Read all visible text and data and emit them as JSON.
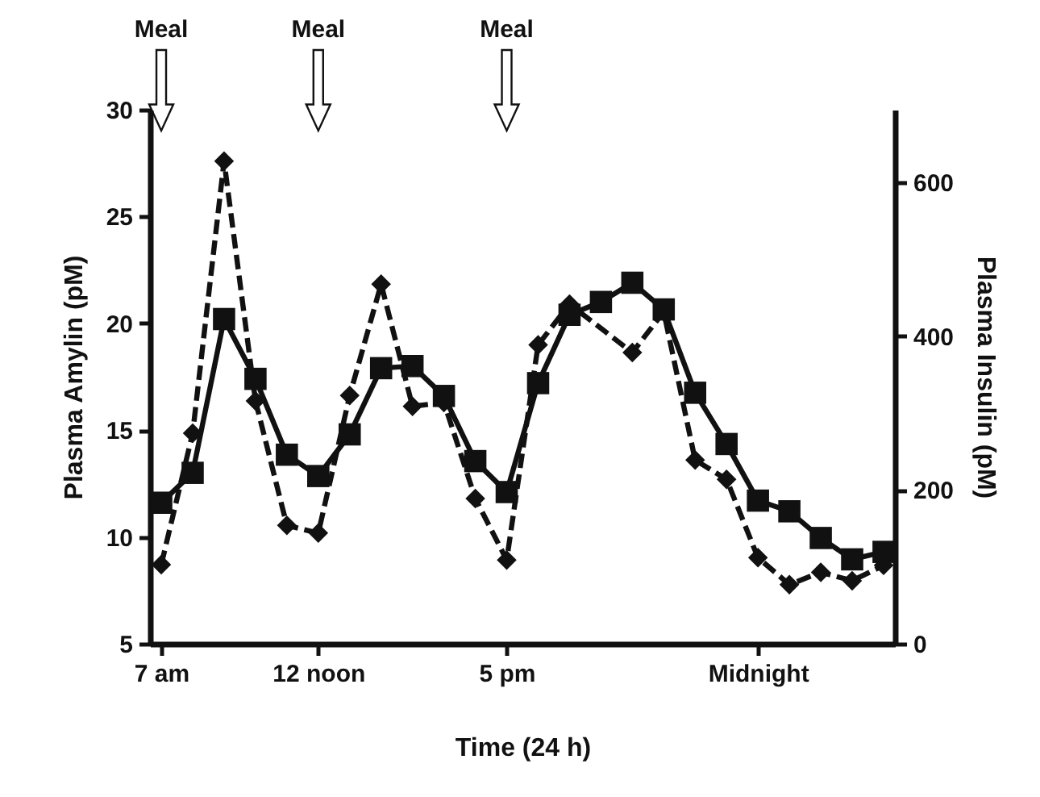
{
  "chart_data": {
    "type": "line",
    "xlabel": "Time (24 h)",
    "ylabel": "Plasma Amylin (pM)",
    "y2label": "Plasma Insulin (pM)",
    "categories": [
      "7 am",
      null,
      null,
      null,
      null,
      "12 noon",
      null,
      null,
      null,
      null,
      null,
      "5 pm",
      null,
      null,
      null,
      null,
      null,
      null,
      null,
      "Midnight",
      null,
      null,
      null,
      null
    ],
    "ylim": [
      5,
      30
    ],
    "yticks": [
      5,
      10,
      15,
      20,
      25,
      30
    ],
    "y2lim": [
      0,
      695
    ],
    "y2ticks": [
      0,
      200,
      400,
      600
    ],
    "grid": false,
    "series": [
      {
        "color": "#111111",
        "marker": "square",
        "line_style": "solid",
        "values": [
          11.6,
          13.0,
          20.2,
          17.4,
          13.85,
          12.85,
          14.8,
          17.9,
          18.0,
          16.6,
          13.55,
          12.1,
          17.2,
          20.4,
          21.0,
          21.9,
          20.65,
          16.75,
          14.35,
          11.7,
          11.2,
          9.95,
          8.95,
          9.3
        ]
      },
      {
        "color": "#111111",
        "marker": "diamond",
        "line_style": "dashed",
        "axis": "y2",
        "values": [
          103,
          274,
          628,
          316,
          154,
          144,
          323,
          468,
          309,
          314,
          189,
          109,
          389,
          442,
          null,
          379,
          432,
          239,
          214,
          112,
          77,
          93,
          82,
          102
        ]
      }
    ],
    "annotations": [
      "Meal",
      "Meal",
      "Meal"
    ]
  }
}
